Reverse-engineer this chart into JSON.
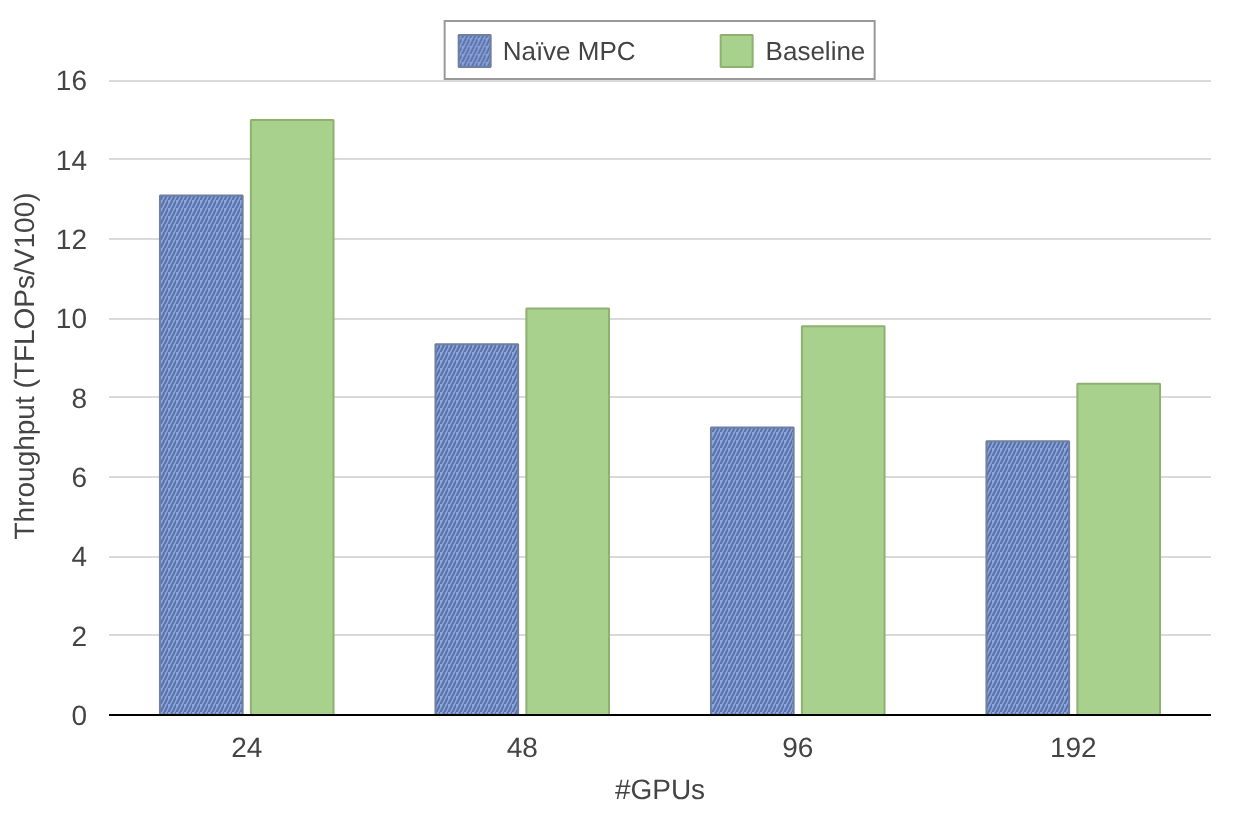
{
  "chart_data": {
    "type": "bar",
    "xlabel": "#GPUs",
    "ylabel": "Throughput (TFLOPs/V100)",
    "categories": [
      "24",
      "48",
      "96",
      "192"
    ],
    "series": [
      {
        "name": "Naïve MPC",
        "color": "#8fa5d6",
        "values": [
          13.1,
          9.35,
          7.25,
          6.9
        ]
      },
      {
        "name": "Baseline",
        "color": "#a9d18e",
        "values": [
          15.0,
          10.25,
          9.8,
          8.35
        ]
      }
    ],
    "ylim": [
      0,
      17.6
    ],
    "yticks": [
      0,
      2,
      4,
      6,
      8,
      10,
      12,
      14,
      16
    ],
    "grid": "y",
    "legend": "top"
  }
}
